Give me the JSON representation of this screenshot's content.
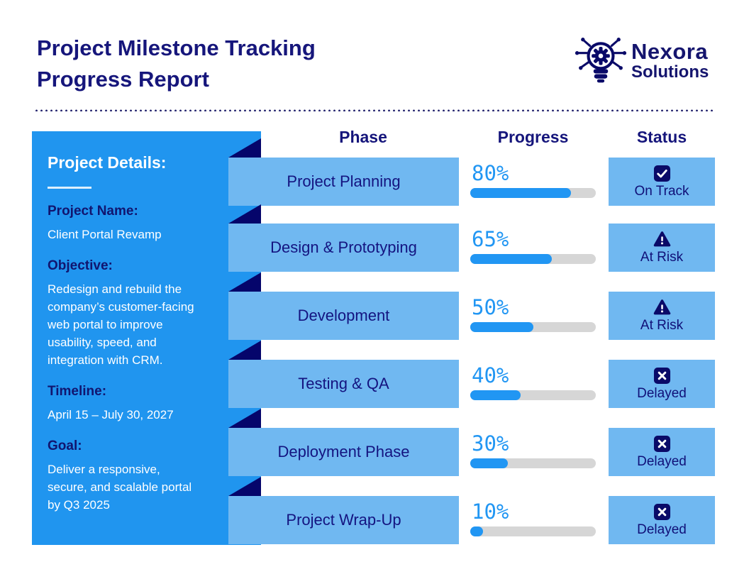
{
  "header": {
    "title_line1": "Project Milestone Tracking",
    "title_line2": "Progress Report",
    "logo": {
      "name": "Nexora",
      "suffix": "Solutions",
      "icon": "lightbulb-gear-circuit-icon"
    }
  },
  "columns": {
    "phase": "Phase",
    "progress": "Progress",
    "status": "Status"
  },
  "sidebar": {
    "title": "Project Details:",
    "fields": [
      {
        "label": "Project Name:",
        "value": "Client Portal Revamp"
      },
      {
        "label": "Objective:",
        "value": "Redesign and rebuild the company’s customer-facing web portal to improve usability, speed, and integration with CRM."
      },
      {
        "label": "Timeline:",
        "value": "April 15 – July 30, 2027"
      },
      {
        "label": "Goal:",
        "value": "Deliver a responsive, secure, and scalable portal by Q3 2025"
      }
    ]
  },
  "rows": [
    {
      "phase": "Project Planning",
      "progress_pct": 80,
      "progress_label": "80%",
      "status": "On Track",
      "status_icon": "check-square-icon"
    },
    {
      "phase": "Design & Prototyping",
      "progress_pct": 65,
      "progress_label": "65%",
      "status": "At Risk",
      "status_icon": "warning-triangle-icon"
    },
    {
      "phase": "Development",
      "progress_pct": 50,
      "progress_label": "50%",
      "status": "At Risk",
      "status_icon": "warning-triangle-icon"
    },
    {
      "phase": "Testing & QA",
      "progress_pct": 40,
      "progress_label": "40%",
      "status": "Delayed",
      "status_icon": "x-square-icon"
    },
    {
      "phase": "Deployment Phase",
      "progress_pct": 30,
      "progress_label": "30%",
      "status": "Delayed",
      "status_icon": "x-square-icon"
    },
    {
      "phase": "Project Wrap-Up",
      "progress_pct": 10,
      "progress_label": "10%",
      "status": "Delayed",
      "status_icon": "x-square-icon"
    }
  ],
  "colors": {
    "navy_text": "#15157b",
    "deep_navy": "#05056b",
    "sidebar_blue": "#2095ef",
    "bar_light_blue": "#70b8f1",
    "progress_blue": "#2196f3",
    "track_gray": "#d6d6d6",
    "background": "#ffffff"
  },
  "chart_data": {
    "type": "bar",
    "title": "Project Milestone Tracking Progress Report",
    "categories": [
      "Project Planning",
      "Design & Prototyping",
      "Development",
      "Testing & QA",
      "Deployment Phase",
      "Project Wrap-Up"
    ],
    "values": [
      80,
      65,
      50,
      40,
      30,
      10
    ],
    "unit": "%",
    "xlabel": "Progress",
    "ylabel": "Phase",
    "xlim": [
      0,
      100
    ],
    "statuses": [
      "On Track",
      "At Risk",
      "At Risk",
      "Delayed",
      "Delayed",
      "Delayed"
    ]
  }
}
